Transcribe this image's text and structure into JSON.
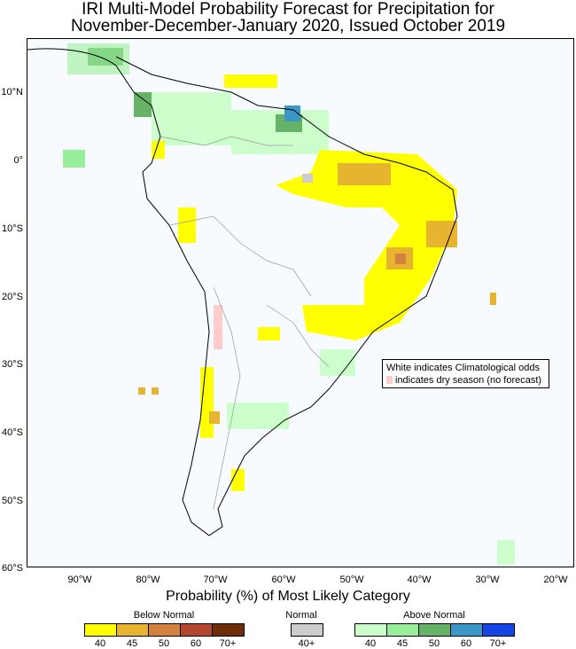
{
  "title_line1": "IRI Multi-Model Probability Forecast for Precipitation for",
  "title_line2": "November-December-January 2020, Issued October 2019",
  "lat_labels": [
    "10°N",
    "0°",
    "10°S",
    "20°S",
    "30°S",
    "40°S",
    "50°S",
    "60°S"
  ],
  "lon_labels": [
    "90°W",
    "80°W",
    "70°W",
    "60°W",
    "50°W",
    "40°W",
    "30°W",
    "20°W"
  ],
  "note": {
    "line1": "White indicates Climatological odds",
    "line2": "indicates dry season (no forecast)"
  },
  "legend": {
    "title": "Probability (%) of Most Likely Category",
    "groups": [
      {
        "name": "Below Normal",
        "colors": [
          "#ffff00",
          "#e6b42e",
          "#d2823c",
          "#b4462d",
          "#6e2d0a"
        ],
        "labels": [
          "40",
          "45",
          "50",
          "60",
          "70+"
        ]
      },
      {
        "name": "Normal",
        "colors": [
          "#cccccc"
        ],
        "labels": [
          "40+"
        ]
      },
      {
        "name": "Above Normal",
        "colors": [
          "#ccffcc",
          "#99ee99",
          "#66b266",
          "#3c96c8",
          "#1446e6"
        ],
        "labels": [
          "40",
          "45",
          "50",
          "60",
          "70+"
        ]
      }
    ]
  },
  "colors": {
    "below": "#ffff00",
    "below45": "#e6b42e",
    "below50": "#d2823c",
    "above40": "#ccffcc",
    "above45": "#99ee99",
    "above50": "#66b266",
    "above60": "#3c96c8",
    "normal": "#cccccc",
    "dry": "#ffcccc",
    "land_outline": "#000000",
    "borders": "#999999"
  }
}
